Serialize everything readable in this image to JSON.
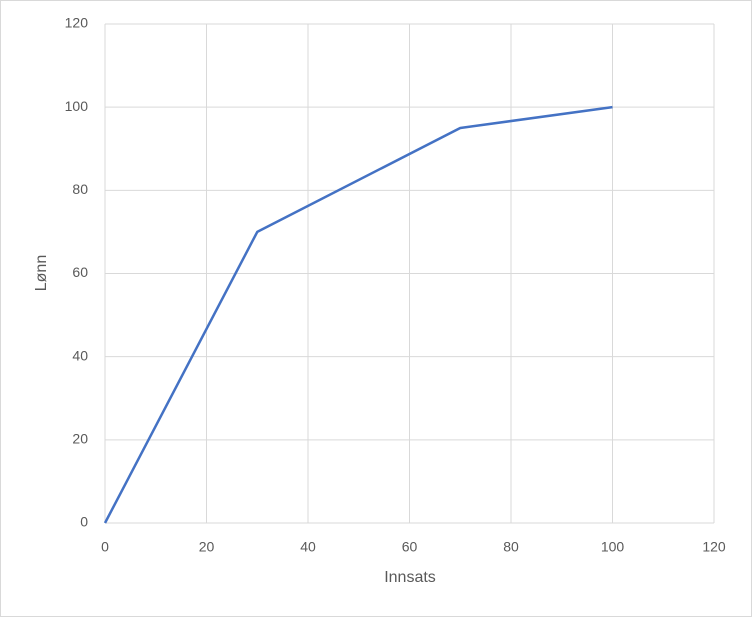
{
  "chart_data": {
    "type": "line",
    "x": [
      0,
      30,
      70,
      100
    ],
    "values": [
      0,
      70,
      95,
      100
    ],
    "color": "#4472c4",
    "x_label": "Innsats",
    "y_label": "Lønn",
    "xlim": [
      0,
      120
    ],
    "xticks": [
      0,
      20,
      40,
      60,
      80,
      100,
      120
    ],
    "ylim": [
      0,
      120
    ],
    "yticks": [
      0,
      20,
      40,
      60,
      80,
      100,
      120
    ],
    "grid": true
  }
}
